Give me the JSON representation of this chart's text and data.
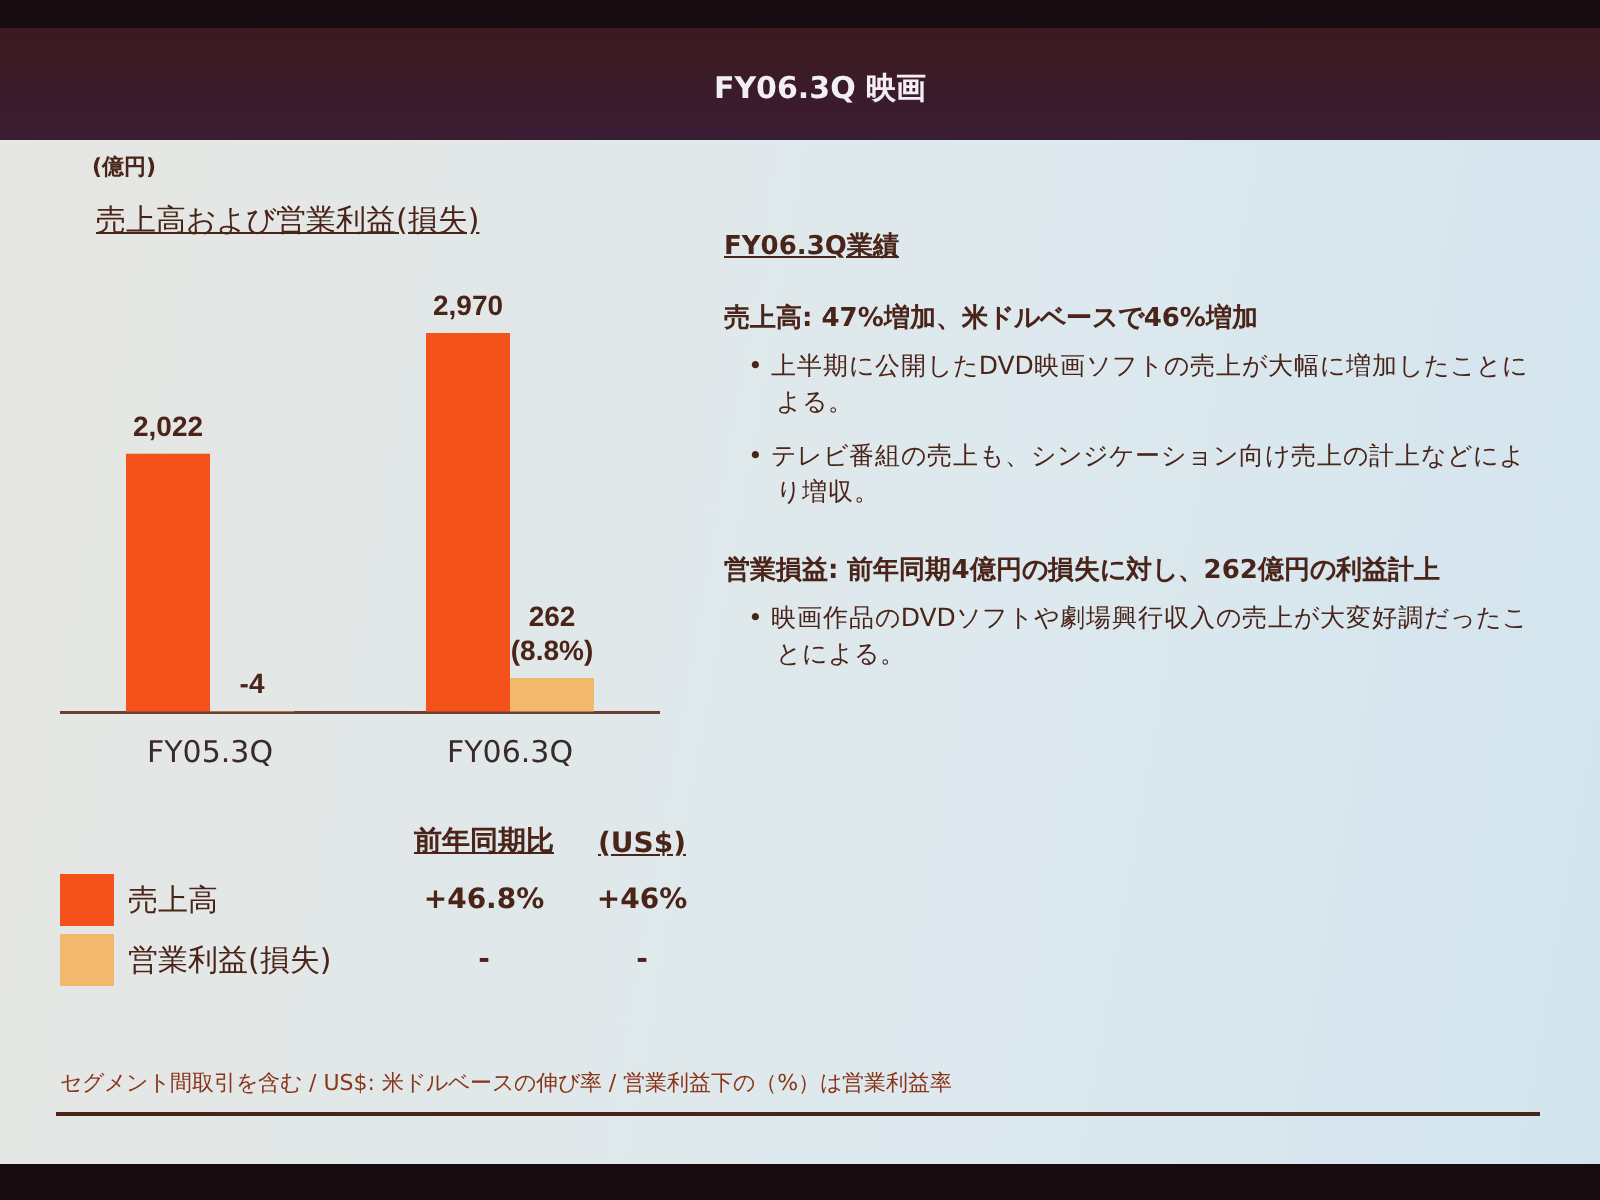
{
  "chart_data": {
    "type": "bar",
    "title": "FY06.3Q 映画",
    "subtitle": "売上高および営業利益(損失)",
    "categories": [
      "FY05.3Q",
      "FY06.3Q"
    ],
    "series": [
      {
        "name": "売上高",
        "color": "#f4511b",
        "values": [
          2022,
          2970
        ],
        "value_labels": [
          "2,022",
          "2,970"
        ]
      },
      {
        "name": "営業利益(損失)",
        "color": "#f2b86c",
        "values": [
          -4,
          262
        ],
        "value_labels": [
          "-4",
          "262 (8.8%)"
        ]
      }
    ],
    "legend": "bottom",
    "annotations": [
      "前年同期比",
      "(US$)",
      "+46.8%",
      "+46%",
      "-",
      "-",
      "FY06.3Q業績",
      "売上高: 47%増加、米ドルベースで46%増加",
      "• 上半期に公開したDVD映画ソフトの売上が大幅に増加したことによる。",
      "• テレビ番組の売上も、シンジケーション向け売上の計上などにより増収。",
      "営業損益: 前年同期4億円の損失に対し、262億円の利益計上",
      "• 映画作品のDVDソフトや劇場興行収入の売上が大変好調だったことによる。",
      "セグメント間取引を含む / US$: 米ドルベースの伸び率 / 営業利益下の（%）は営業利益率",
      "(億円)"
    ]
  }
}
